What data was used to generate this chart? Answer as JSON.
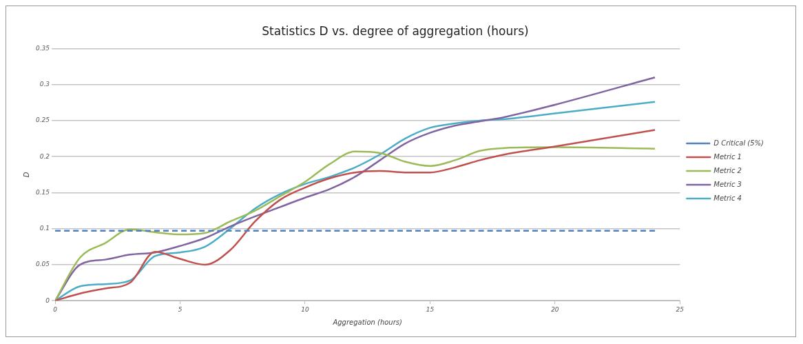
{
  "chart_data": {
    "type": "line",
    "title": "Statistics D vs. degree of aggregation (hours)",
    "xlabel": "Aggregation (hours)",
    "ylabel": "D",
    "x": [
      0,
      1,
      2,
      3,
      4,
      5,
      6,
      7,
      8,
      9,
      10,
      11,
      12,
      13,
      14,
      15,
      16,
      17,
      18,
      20,
      24
    ],
    "series": [
      {
        "name": "D Critical (5%)",
        "color": "#4f81bd",
        "line_style": "dashed",
        "x": [
          0,
          24
        ],
        "values": [
          0.097,
          0.097
        ]
      },
      {
        "name": "Metric 1",
        "color": "#c0504d",
        "values": [
          0,
          0.01,
          0.017,
          0.025,
          0.068,
          0.058,
          0.05,
          0.07,
          0.11,
          0.14,
          0.157,
          0.17,
          0.178,
          0.18,
          0.178,
          0.178,
          0.185,
          0.195,
          0.203,
          0.214,
          0.237
        ]
      },
      {
        "name": "Metric 2",
        "color": "#9bbb59",
        "values": [
          0,
          0.06,
          0.08,
          0.099,
          0.095,
          0.092,
          0.094,
          0.11,
          0.125,
          0.145,
          0.165,
          0.19,
          0.207,
          0.205,
          0.193,
          0.187,
          0.195,
          0.208,
          0.212,
          0.213,
          0.211
        ]
      },
      {
        "name": "Metric 3",
        "color": "#8064a2",
        "values": [
          0,
          0.05,
          0.057,
          0.064,
          0.067,
          0.076,
          0.087,
          0.103,
          0.117,
          0.13,
          0.143,
          0.155,
          0.172,
          0.195,
          0.218,
          0.233,
          0.243,
          0.249,
          0.255,
          0.272,
          0.31
        ]
      },
      {
        "name": "Metric 4",
        "color": "#4bacc6",
        "values": [
          0,
          0.02,
          0.023,
          0.028,
          0.062,
          0.067,
          0.075,
          0.1,
          0.128,
          0.148,
          0.162,
          0.172,
          0.185,
          0.203,
          0.225,
          0.24,
          0.246,
          0.25,
          0.252,
          0.26,
          0.276
        ]
      }
    ],
    "xlim": [
      0,
      25
    ],
    "xticks": [
      0,
      5,
      10,
      15,
      20,
      25
    ],
    "ylim": [
      0,
      0.35
    ],
    "yticks": [
      0,
      0.05,
      0.1,
      0.15,
      0.2,
      0.25,
      0.3,
      0.35
    ],
    "grid": "y",
    "legend": "right",
    "marker": "none",
    "line_style": "solid"
  }
}
